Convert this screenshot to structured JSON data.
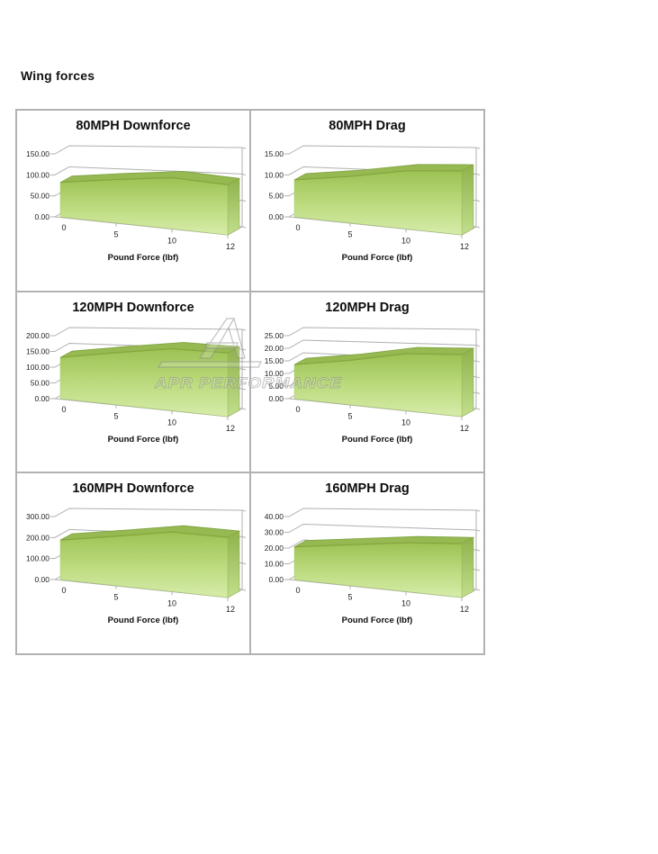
{
  "page": {
    "heading": "Wing forces"
  },
  "watermark": {
    "text": "APR PERFORMANCE",
    "logo": "apr-logo",
    "color": "#8f8f8f"
  },
  "colors": {
    "area_gradient_top": "#9cc253",
    "area_gradient_mid": "#bedc81",
    "area_gradient_bottom": "#d6ecaa",
    "area_top_band": "#96b952",
    "area_band_stroke": "#7da140",
    "area_side_top": "#8fb24c",
    "area_side_bottom": "#c2de8d",
    "area_edge": "#86a53e",
    "grid_line": "#b0b0b0",
    "cell_border": "#b2b2b2",
    "text": "#1a1a1a"
  },
  "chart_data": [
    {
      "type": "area",
      "title": "80MPH Downforce",
      "categories": [
        0,
        5,
        10,
        12
      ],
      "x_tick_labels": [
        "0",
        "5",
        "10",
        "12"
      ],
      "values": [
        82,
        95,
        104,
        95
      ],
      "xlabel": "Pound Force (lbf)",
      "ylabel": "",
      "ylim": [
        0,
        150
      ],
      "yticks": [
        0,
        50,
        100,
        150
      ],
      "y_tick_format": "2dp",
      "grid": true,
      "legend": false,
      "style_3d": true
    },
    {
      "type": "area",
      "title": "80MPH Drag",
      "categories": [
        0,
        5,
        10,
        12
      ],
      "x_tick_labels": [
        "0",
        "5",
        "10",
        "12"
      ],
      "values": [
        8.8,
        10.2,
        11.8,
        12.1
      ],
      "xlabel": "Pound Force (lbf)",
      "ylabel": "",
      "ylim": [
        0,
        15
      ],
      "yticks": [
        0,
        5,
        10,
        15
      ],
      "y_tick_format": "2dp",
      "grid": true,
      "legend": false,
      "style_3d": true
    },
    {
      "type": "area",
      "title": "120MPH Downforce",
      "categories": [
        0,
        5,
        10,
        12
      ],
      "x_tick_labels": [
        "0",
        "5",
        "10",
        "12"
      ],
      "values": [
        131,
        152,
        168,
        161
      ],
      "xlabel": "Pound Force (lbf)",
      "ylabel": "",
      "ylim": [
        0,
        200
      ],
      "yticks": [
        0,
        50,
        100,
        150,
        200
      ],
      "y_tick_format": "2dp",
      "grid": true,
      "legend": false,
      "style_3d": true
    },
    {
      "type": "area",
      "title": "120MPH Drag",
      "categories": [
        0,
        5,
        10,
        12
      ],
      "x_tick_labels": [
        "0",
        "5",
        "10",
        "12"
      ],
      "values": [
        13.5,
        16.2,
        19.3,
        19.6
      ],
      "xlabel": "Pound Force (lbf)",
      "ylabel": "",
      "ylim": [
        0,
        25
      ],
      "yticks": [
        0,
        5,
        10,
        15,
        20,
        25
      ],
      "y_tick_format": "2dp",
      "grid": true,
      "legend": false,
      "style_3d": true
    },
    {
      "type": "area",
      "title": "160MPH Downforce",
      "categories": [
        0,
        5,
        10,
        12
      ],
      "x_tick_labels": [
        "0",
        "5",
        "10",
        "12"
      ],
      "values": [
        188,
        216,
        242,
        228
      ],
      "xlabel": "Pound Force (lbf)",
      "ylabel": "",
      "ylim": [
        0,
        300
      ],
      "yticks": [
        0,
        100,
        200,
        300
      ],
      "y_tick_format": "2dp",
      "grid": true,
      "legend": false,
      "style_3d": true
    },
    {
      "type": "area",
      "title": "160MPH Drag",
      "categories": [
        0,
        5,
        10,
        12
      ],
      "x_tick_labels": [
        "0",
        "5",
        "10",
        "12"
      ],
      "values": [
        20.8,
        23.8,
        26.4,
        27.2
      ],
      "xlabel": "Pound Force (lbf)",
      "ylabel": "",
      "ylim": [
        0,
        40
      ],
      "yticks": [
        0,
        10,
        20,
        30,
        40
      ],
      "y_tick_format": "2dp",
      "grid": true,
      "legend": false,
      "style_3d": true
    }
  ]
}
